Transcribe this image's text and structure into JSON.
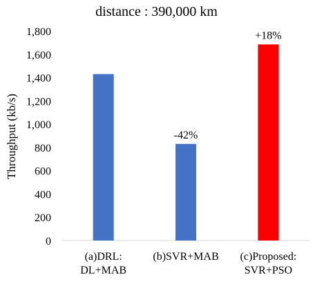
{
  "chart_data": {
    "type": "bar",
    "title": "distance : 390,000 km",
    "xlabel": "",
    "ylabel": "Throughput (kb/s)",
    "ylim": [
      0,
      1800
    ],
    "yticks": [
      0,
      200,
      400,
      600,
      800,
      1000,
      1200,
      1400,
      1600,
      1800
    ],
    "ytick_labels": [
      "0",
      "200",
      "400",
      "600",
      "800",
      "1,000",
      "1,200",
      "1,400",
      "1,600",
      "1,800"
    ],
    "grid": false,
    "categories": [
      [
        "(a)DRL:",
        "DL+MAB"
      ],
      [
        "(b)SVR+MAB"
      ],
      [
        "(c)Proposed:",
        "SVR+PSO"
      ]
    ],
    "values": [
      1430,
      830,
      1685
    ],
    "colors": [
      "#4472c4",
      "#4472c4",
      "#ff0000"
    ],
    "annotations": [
      "",
      "-42%",
      "+18%"
    ]
  }
}
